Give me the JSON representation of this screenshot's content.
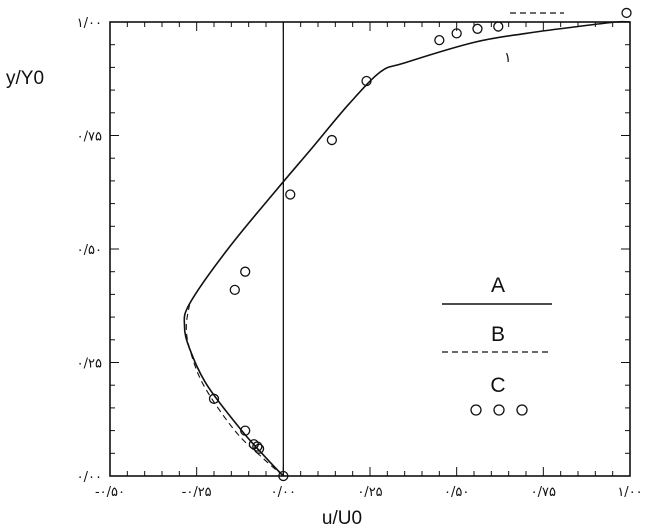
{
  "chart_data": {
    "type": "line",
    "xlabel": "u/U0",
    "ylabel": "y/Y0",
    "xlim": [
      -0.5,
      1.0
    ],
    "ylim": [
      0.0,
      1.0
    ],
    "x_ticks": [
      -0.5,
      -0.25,
      0.0,
      0.25,
      0.5,
      0.75,
      1.0
    ],
    "y_ticks": [
      0.0,
      0.25,
      0.5,
      0.75,
      1.0
    ],
    "x_tick_labels": [
      "-۰/۵۰",
      "-۰/۲۵",
      "۰/۰۰",
      "۰/۲۵",
      "۰/۵۰",
      "۰/۷۵",
      "۱/۰۰"
    ],
    "y_tick_labels": [
      "۰/۰۰",
      "۰/۲۵",
      "۰/۵۰",
      "۰/۷۵",
      "۱/۰۰"
    ],
    "grid": false,
    "legend_position": "right",
    "annotation": "۱",
    "series": [
      {
        "name": "A",
        "style": "solid",
        "x": [
          0.0,
          -0.05,
          -0.12,
          -0.22,
          -0.27,
          -0.285,
          -0.27,
          -0.16,
          -0.02,
          0.08,
          0.19,
          0.28,
          0.35,
          0.55,
          0.7,
          0.85,
          0.96,
          1.0
        ],
        "y": [
          0.0,
          0.04,
          0.1,
          0.2,
          0.28,
          0.33,
          0.38,
          0.5,
          0.63,
          0.72,
          0.82,
          0.89,
          0.91,
          0.955,
          0.975,
          0.99,
          1.0,
          1.0
        ]
      },
      {
        "name": "B",
        "style": "dashed",
        "x": [
          0.0,
          -0.06,
          -0.14,
          -0.23,
          -0.27,
          -0.28,
          -0.27
        ],
        "y": [
          0.0,
          0.04,
          0.1,
          0.2,
          0.28,
          0.33,
          0.38
        ]
      },
      {
        "name": "C",
        "style": "markers",
        "x": [
          0.0,
          -0.07,
          -0.075,
          -0.085,
          -0.11,
          -0.2,
          -0.14,
          -0.11,
          0.02,
          0.14,
          0.24,
          0.45,
          0.5,
          0.56,
          0.62,
          0.99
        ],
        "y": [
          0.0,
          0.06,
          0.065,
          0.07,
          0.1,
          0.17,
          0.41,
          0.45,
          0.62,
          0.74,
          0.87,
          0.96,
          0.975,
          0.985,
          0.99,
          1.02
        ]
      }
    ]
  }
}
